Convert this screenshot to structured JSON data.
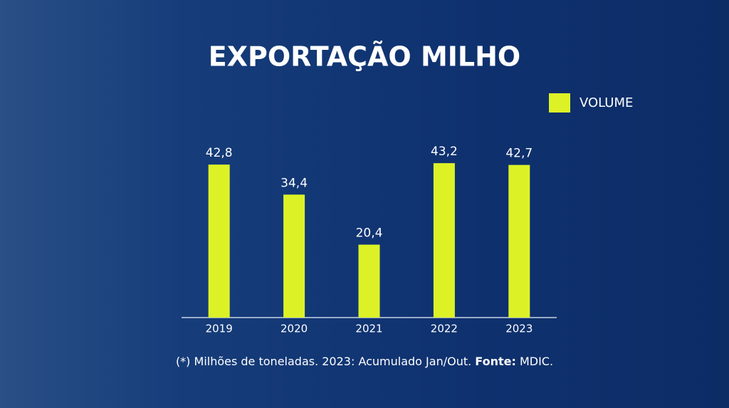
{
  "chart_data": {
    "type": "bar",
    "title": "EXPORTAÇÃO MILHO",
    "categories": [
      "2019",
      "2020",
      "2021",
      "2022",
      "2023"
    ],
    "series": [
      {
        "name": "VOLUME",
        "color": "#dcf227",
        "values": [
          42.8,
          34.4,
          20.4,
          43.2,
          42.7
        ],
        "value_labels": [
          "42,8",
          "34,4",
          "20,4",
          "43,2",
          "42,7"
        ]
      }
    ],
    "note": "(*) Milhões de toneladas. 2023: Acumulado Jan/Out.",
    "source_label": "Fonte:",
    "source": "MDIC.",
    "legend": "top-right"
  }
}
